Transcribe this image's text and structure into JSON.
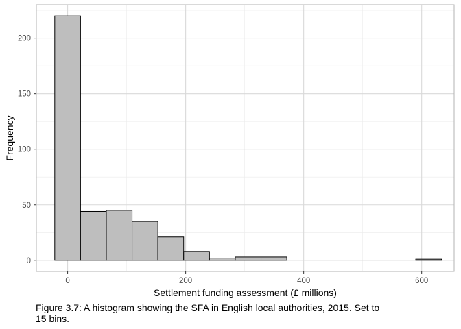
{
  "chart_data": {
    "type": "bar",
    "subtype": "histogram",
    "bins": 15,
    "x_bins": [
      {
        "start": -21.85,
        "end": 21.85,
        "count": 220
      },
      {
        "start": 21.85,
        "end": 65.55,
        "count": 44
      },
      {
        "start": 65.55,
        "end": 109.25,
        "count": 45
      },
      {
        "start": 109.25,
        "end": 152.95,
        "count": 35
      },
      {
        "start": 152.95,
        "end": 196.65,
        "count": 21
      },
      {
        "start": 196.65,
        "end": 240.35,
        "count": 8
      },
      {
        "start": 240.35,
        "end": 284.05,
        "count": 2
      },
      {
        "start": 284.05,
        "end": 327.75,
        "count": 3
      },
      {
        "start": 327.75,
        "end": 371.45,
        "count": 3
      },
      {
        "start": 371.45,
        "end": 415.15,
        "count": 0
      },
      {
        "start": 415.15,
        "end": 458.85,
        "count": 0
      },
      {
        "start": 458.85,
        "end": 502.55,
        "count": 0
      },
      {
        "start": 502.55,
        "end": 546.25,
        "count": 0
      },
      {
        "start": 546.25,
        "end": 589.95,
        "count": 0
      },
      {
        "start": 589.95,
        "end": 633.65,
        "count": 1
      }
    ],
    "xlabel": "Settlement funding assessment (£ millions)",
    "ylabel": "Frequency",
    "xlim": [
      -53,
      655
    ],
    "ylim": [
      -10,
      230
    ],
    "x_ticks": [
      0,
      200,
      400,
      600
    ],
    "x_tick_labels": [
      "0",
      "200",
      "400",
      "600"
    ],
    "y_ticks": [
      0,
      50,
      100,
      150,
      200
    ],
    "y_tick_labels": [
      "0",
      "50",
      "100",
      "150",
      "200"
    ],
    "x_minor_ticks": [
      100,
      300,
      500
    ],
    "y_minor_ticks": [
      25,
      75,
      125,
      175,
      225
    ],
    "grid": true,
    "colors": {
      "bar_fill": "#bebebe",
      "bar_stroke": "#000000",
      "grid": "#d9d9d9",
      "minor_grid": "#ebebeb",
      "panel_border": "#b3b3b3"
    }
  },
  "caption": "Figure 3.7: A histogram showing the SFA in English local authorities, 2015. Set to 15 bins."
}
